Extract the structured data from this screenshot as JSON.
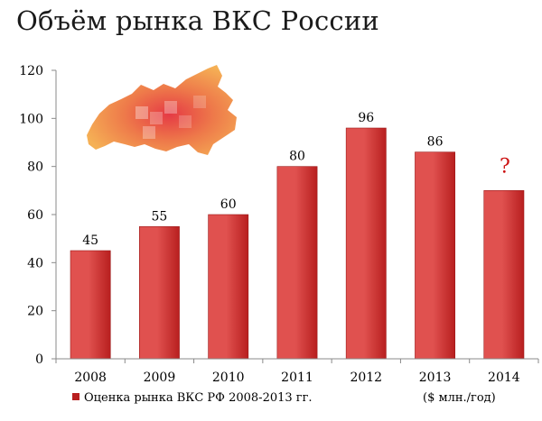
{
  "title": "Объём рынка ВКС России",
  "chart_data": {
    "type": "bar",
    "categories": [
      "2008",
      "2009",
      "2010",
      "2011",
      "2012",
      "2013",
      "2014"
    ],
    "series": [
      {
        "name": "Оценка рынка ВКС РФ 2008-2013 гг.",
        "values": [
          45,
          55,
          60,
          80,
          96,
          86,
          70
        ]
      }
    ],
    "data_labels": [
      "45",
      "55",
      "60",
      "80",
      "96",
      "86",
      ""
    ],
    "annotation": {
      "category": "2014",
      "text": "?"
    },
    "unit_note": "($ млн./год)",
    "ylim": [
      0,
      120
    ],
    "yticks": [
      0,
      20,
      40,
      60,
      80,
      100,
      120
    ],
    "grid": false,
    "legend": "bottom-left",
    "colors": {
      "bar_light": "#e0514f",
      "bar_dark": "#b81f1f",
      "annotation": "#cc1111"
    }
  }
}
